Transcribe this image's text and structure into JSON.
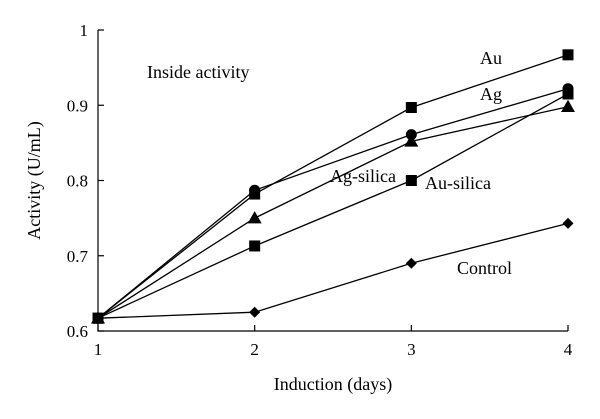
{
  "chart_data": {
    "type": "line",
    "xlabel": "Induction (days)",
    "ylabel": "Activity (U/mL)",
    "xlim": [
      1,
      4
    ],
    "ylim": [
      0.6,
      1.0
    ],
    "x_ticks": [
      1,
      2,
      3,
      4
    ],
    "y_ticks": [
      0.6,
      0.7,
      0.8,
      0.9,
      1.0
    ],
    "x_tick_labels": [
      "1",
      "2",
      "3",
      "4"
    ],
    "y_tick_labels": [
      "0.6",
      "0.7",
      "0.8",
      "0.9",
      "1"
    ],
    "grid": false,
    "line_color": "#000000",
    "annotations": [
      {
        "text": "Inside activity"
      },
      {
        "text": "Au"
      },
      {
        "text": "Ag"
      },
      {
        "text": "Ag-silica"
      },
      {
        "text": "Au-silica"
      },
      {
        "text": "Control"
      }
    ],
    "x": [
      1,
      2,
      3,
      4
    ],
    "series": [
      {
        "key": "au",
        "marker": "square",
        "values": [
          0.617,
          0.782,
          0.897,
          0.967
        ]
      },
      {
        "key": "ag",
        "marker": "circle",
        "values": [
          0.617,
          0.787,
          0.861,
          0.922
        ]
      },
      {
        "key": "ag_silica",
        "marker": "triangle",
        "values": [
          0.617,
          0.75,
          0.852,
          0.898
        ]
      },
      {
        "key": "au_silica",
        "marker": "square",
        "values": [
          0.617,
          0.713,
          0.8,
          0.915
        ]
      },
      {
        "key": "control",
        "marker": "diamond",
        "values": [
          0.617,
          0.625,
          0.69,
          0.743
        ]
      }
    ]
  }
}
